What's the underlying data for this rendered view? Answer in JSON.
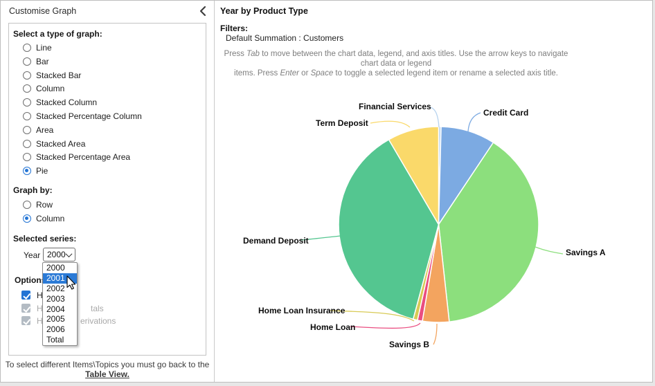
{
  "left_panel": {
    "title": "Customise Graph",
    "collapse_icon": "chevron-left-icon",
    "graph_type": {
      "label": "Select a type of graph:",
      "options": [
        "Line",
        "Bar",
        "Stacked Bar",
        "Column",
        "Stacked Column",
        "Stacked Percentage Column",
        "Area",
        "Stacked Area",
        "Stacked Percentage Area",
        "Pie"
      ],
      "selected": "Pie"
    },
    "graph_by": {
      "label": "Graph by:",
      "options": [
        "Row",
        "Column"
      ],
      "selected": "Column"
    },
    "selected_series": {
      "label": "Selected series:",
      "year_label": "Year",
      "year_value": "2000"
    },
    "year_dropdown": {
      "options": [
        "2000",
        "2001",
        "2002",
        "2003",
        "2004",
        "2005",
        "2006",
        "Total"
      ],
      "highlighted": "2001"
    },
    "options": {
      "label": "Options",
      "checkboxes": [
        {
          "visible_fragment": "Hi",
          "visible_fragment_right": "",
          "checked": true,
          "disabled": false
        },
        {
          "visible_fragment": "Hi",
          "visible_fragment_right": "tals",
          "checked": true,
          "disabled": true
        },
        {
          "visible_fragment": "Hi",
          "visible_fragment_right": "erivations",
          "checked": true,
          "disabled": true
        }
      ]
    },
    "footer": {
      "line1": "To select different Items\\Topics you must go back to the",
      "link": "Table View."
    }
  },
  "right_panel": {
    "title": "Year by Product Type",
    "filters_label": "Filters:",
    "filters_value": "Default Summation : Customers",
    "hint_line1": [
      {
        "text": "Press "
      },
      {
        "text": "Tab",
        "italic": true
      },
      {
        "text": " to move between the chart data, legend, and axis titles. Use the arrow keys to navigate chart data or legend"
      }
    ],
    "hint_line2": [
      {
        "text": "items. Press "
      },
      {
        "text": "Enter",
        "italic": true
      },
      {
        "text": " or "
      },
      {
        "text": "Space",
        "italic": true
      },
      {
        "text": " to toggle a selected legend item or rename a selected axis title."
      }
    ]
  },
  "chart_data": {
    "type": "pie",
    "title": "Year by Product Type",
    "legend": false,
    "labels_position": "outside-with-leader-lines",
    "start_angle_deg": 0,
    "direction": "clockwise",
    "values_are_estimated_percent": true,
    "slices": [
      {
        "label": "Financial Services",
        "value": 0.4,
        "color": "#b7d3ef"
      },
      {
        "label": "Credit Card",
        "value": 8.8,
        "color": "#7caae2"
      },
      {
        "label": "Savings A",
        "value": 39.1,
        "color": "#8cdf7d"
      },
      {
        "label": "Savings B",
        "value": 4.3,
        "color": "#f3a45f"
      },
      {
        "label": "Home Loan",
        "value": 0.8,
        "color": "#ea4d80"
      },
      {
        "label": "Home Loan Insurance",
        "value": 0.7,
        "color": "#d8ca55"
      },
      {
        "label": "Demand Deposit",
        "value": 37.6,
        "color": "#54c690"
      },
      {
        "label": "Term Deposit",
        "value": 8.3,
        "color": "#fad96a"
      }
    ]
  }
}
